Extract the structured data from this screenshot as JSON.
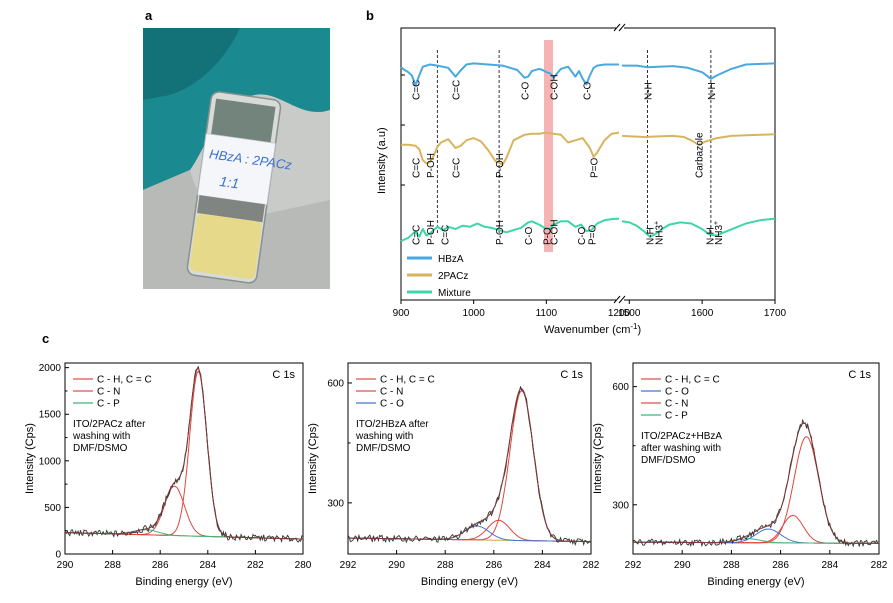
{
  "panel_labels": {
    "a": "a",
    "b": "b",
    "c": "c"
  },
  "photo": {
    "label_text": "HBzA : 2PACz",
    "label_ratio": "1:1",
    "colors": {
      "glove": "#1a8a90",
      "powder": "#e6d98a",
      "background": "#c9cbc9"
    }
  },
  "chart_data": [
    {
      "type": "line",
      "panel": "b",
      "xlabel": "Wavenumber (cm",
      "xlabel_sup": "-1",
      "xlabel_end": ")",
      "ylabel": "Intensity (a.u)",
      "broken_axis": true,
      "x_ticks": [
        "900",
        "1000",
        "1100",
        "1200",
        "1500",
        "1600",
        "1700"
      ],
      "xlim_left": [
        900,
        1200
      ],
      "xlim_right": [
        1490,
        1700
      ],
      "highlight_band_center": 1102,
      "legend": [
        {
          "label": "HBzA",
          "color": "#4aa8e0"
        },
        {
          "label": "2PACz",
          "color": "#d9b45e"
        },
        {
          "label": "Mixture",
          "color": "#3dd6a8"
        }
      ],
      "series": [
        {
          "name": "HBzA",
          "color": "#4aa8e0",
          "offset": 9,
          "left": [
            [
              900,
              0.45
            ],
            [
              905,
              0.7
            ],
            [
              910,
              0.9
            ],
            [
              915,
              1.2
            ],
            [
              920,
              2.1
            ],
            [
              925,
              1.2
            ],
            [
              930,
              0.4
            ],
            [
              940,
              0.2
            ],
            [
              950,
              0.3
            ],
            [
              965,
              0.5
            ],
            [
              975,
              1.3
            ],
            [
              980,
              0.9
            ],
            [
              990,
              0.2
            ],
            [
              1000,
              0.1
            ],
            [
              1020,
              0.2
            ],
            [
              1040,
              0.3
            ],
            [
              1060,
              0.7
            ],
            [
              1070,
              1.4
            ],
            [
              1075,
              1.3
            ],
            [
              1080,
              0.8
            ],
            [
              1090,
              0.6
            ],
            [
              1095,
              0.7
            ],
            [
              1100,
              0.9
            ],
            [
              1105,
              1.0
            ],
            [
              1110,
              1.4
            ],
            [
              1115,
              1.0
            ],
            [
              1120,
              0.6
            ],
            [
              1130,
              0.4
            ],
            [
              1140,
              1.3
            ],
            [
              1145,
              0.8
            ],
            [
              1150,
              1.5
            ],
            [
              1155,
              2.0
            ],
            [
              1160,
              1.2
            ],
            [
              1165,
              0.5
            ],
            [
              1170,
              0.3
            ],
            [
              1180,
              0.2
            ],
            [
              1190,
              0.2
            ],
            [
              1200,
              0.2
            ]
          ],
          "right": [
            [
              1490,
              0.3
            ],
            [
              1510,
              0.3
            ],
            [
              1525,
              0.45
            ],
            [
              1540,
              0.4
            ],
            [
              1560,
              0.35
            ],
            [
              1580,
              0.5
            ],
            [
              1600,
              0.9
            ],
            [
              1612,
              1.5
            ],
            [
              1620,
              1.2
            ],
            [
              1640,
              0.6
            ],
            [
              1660,
              0.2
            ],
            [
              1680,
              0.15
            ],
            [
              1700,
              0.1
            ]
          ]
        },
        {
          "name": "2PACz",
          "color": "#d9b45e",
          "offset": 5,
          "left": [
            [
              900,
              1.2
            ],
            [
              910,
              1.2
            ],
            [
              920,
              1.3
            ],
            [
              925,
              1.6
            ],
            [
              930,
              2.6
            ],
            [
              935,
              2.9
            ],
            [
              940,
              2.8
            ],
            [
              945,
              2.2
            ],
            [
              950,
              1.4
            ],
            [
              955,
              1.0
            ],
            [
              965,
              0.7
            ],
            [
              975,
              1.5
            ],
            [
              982,
              1.3
            ],
            [
              990,
              0.8
            ],
            [
              1000,
              0.6
            ],
            [
              1010,
              0.9
            ],
            [
              1020,
              1.7
            ],
            [
              1030,
              2.7
            ],
            [
              1040,
              3.0
            ],
            [
              1045,
              2.4
            ],
            [
              1055,
              0.8
            ],
            [
              1070,
              0.3
            ],
            [
              1080,
              0.2
            ],
            [
              1090,
              0.2
            ],
            [
              1100,
              0.1
            ],
            [
              1110,
              0.2
            ],
            [
              1120,
              0.3
            ],
            [
              1130,
              1.0
            ],
            [
              1140,
              0.8
            ],
            [
              1150,
              0.6
            ],
            [
              1160,
              1.5
            ],
            [
              1165,
              2.3
            ],
            [
              1170,
              1.9
            ],
            [
              1180,
              0.8
            ],
            [
              1190,
              0.2
            ],
            [
              1200,
              0.1
            ]
          ],
          "right": [
            [
              1490,
              0.4
            ],
            [
              1520,
              0.5
            ],
            [
              1540,
              0.45
            ],
            [
              1560,
              0.4
            ],
            [
              1575,
              0.5
            ],
            [
              1585,
              0.8
            ],
            [
              1595,
              1.2
            ],
            [
              1605,
              0.9
            ],
            [
              1620,
              0.6
            ],
            [
              1640,
              0.4
            ],
            [
              1660,
              0.35
            ],
            [
              1680,
              0.3
            ],
            [
              1700,
              0.25
            ]
          ]
        },
        {
          "name": "Mixture",
          "color": "#3dd6a8",
          "offset": 0,
          "left": [
            [
              900,
              2.1
            ],
            [
              910,
              1.8
            ],
            [
              920,
              1.2
            ],
            [
              925,
              1.7
            ],
            [
              930,
              1.0
            ],
            [
              935,
              1.6
            ],
            [
              940,
              1.4
            ],
            [
              950,
              0.8
            ],
            [
              958,
              1.1
            ],
            [
              965,
              0.8
            ],
            [
              975,
              1.0
            ],
            [
              985,
              0.7
            ],
            [
              995,
              0.8
            ],
            [
              1005,
              0.5
            ],
            [
              1015,
              0.8
            ],
            [
              1025,
              0.9
            ],
            [
              1035,
              1.1
            ],
            [
              1045,
              1.3
            ],
            [
              1055,
              1.1
            ],
            [
              1065,
              0.9
            ],
            [
              1075,
              0.4
            ],
            [
              1080,
              0.3
            ],
            [
              1090,
              0.6
            ],
            [
              1100,
              1.0
            ],
            [
              1105,
              1.0
            ],
            [
              1110,
              0.6
            ],
            [
              1120,
              0.3
            ],
            [
              1130,
              0.3
            ],
            [
              1140,
              0.8
            ],
            [
              1148,
              0.6
            ],
            [
              1155,
              1.2
            ],
            [
              1162,
              1.1
            ],
            [
              1170,
              0.5
            ],
            [
              1180,
              0.2
            ],
            [
              1190,
              0.1
            ],
            [
              1200,
              0.05
            ]
          ],
          "right": [
            [
              1490,
              0.3
            ],
            [
              1500,
              0.4
            ],
            [
              1510,
              0.7
            ],
            [
              1520,
              1.2
            ],
            [
              1528,
              1.7
            ],
            [
              1535,
              1.5
            ],
            [
              1545,
              1.0
            ],
            [
              1555,
              0.6
            ],
            [
              1570,
              0.4
            ],
            [
              1585,
              0.5
            ],
            [
              1600,
              1.0
            ],
            [
              1610,
              1.5
            ],
            [
              1620,
              1.6
            ],
            [
              1630,
              1.3
            ],
            [
              1645,
              0.9
            ],
            [
              1660,
              0.5
            ],
            [
              1680,
              0.2
            ],
            [
              1700,
              0.05
            ]
          ]
        }
      ],
      "annotations": [
        {
          "series": 0,
          "text": "C=C",
          "x": 920
        },
        {
          "series": 0,
          "text": "C=C",
          "x": 975
        },
        {
          "series": 0,
          "text": "C-O",
          "x": 1070
        },
        {
          "series": 0,
          "text": "C-OH",
          "x": 1110
        },
        {
          "series": 0,
          "text": "C-O",
          "x": 1155
        },
        {
          "series": 0,
          "text": "N-H",
          "x": 1525
        },
        {
          "series": 0,
          "text": "N-H",
          "x": 1612
        },
        {
          "series": 1,
          "text": "C=C",
          "x": 920
        },
        {
          "series": 1,
          "text": "P-OH",
          "x": 940
        },
        {
          "series": 1,
          "text": "C=C",
          "x": 975
        },
        {
          "series": 1,
          "text": "P-OH",
          "x": 1035
        },
        {
          "series": 1,
          "text": "P=O",
          "x": 1165
        },
        {
          "series": 1,
          "text": "Carbazole",
          "x": 1595
        },
        {
          "series": 2,
          "text": "C=C",
          "x": 920
        },
        {
          "series": 2,
          "text": "P-OH",
          "x": 940
        },
        {
          "series": 2,
          "text": "C=C",
          "x": 960
        },
        {
          "series": 2,
          "text": "P-OH",
          "x": 1035
        },
        {
          "series": 2,
          "text": "C-O",
          "x": 1075
        },
        {
          "series": 2,
          "text": "P-O",
          "x": 1100
        },
        {
          "series": 2,
          "text": "C-OH",
          "x": 1110
        },
        {
          "series": 2,
          "text": "C-O",
          "x": 1148
        },
        {
          "series": 2,
          "text": "P=O",
          "x": 1162
        },
        {
          "series": 2,
          "text": "N-H",
          "x": 1528
        },
        {
          "series": 2,
          "text": "NH3",
          "x": 1540
        },
        {
          "series": 2,
          "text": "N-H",
          "x": 1610
        },
        {
          "series": 2,
          "text": "NH3",
          "x": 1622
        }
      ],
      "annotation_sup": "+",
      "dashed_lines_x": [
        950,
        1035,
        1525,
        1612
      ]
    },
    {
      "type": "line",
      "panel": "c1",
      "title": "C 1s",
      "xlabel": "Binding energy (eV)",
      "ylabel": "Intensity (Cps)",
      "x_reversed": true,
      "xlim": [
        290,
        280
      ],
      "ylim": [
        0,
        2050
      ],
      "x_ticks": [
        290,
        288,
        286,
        284,
        282,
        280
      ],
      "y_ticks": [
        0,
        500,
        1000,
        1500,
        2000
      ],
      "y_ticks_minor": [
        250,
        750,
        1250,
        1750
      ],
      "note": [
        "ITO/2PACz after",
        "washing with",
        "DMF/DSMO"
      ],
      "background": {
        "left": 230,
        "right": 160
      },
      "peaks": [
        {
          "name": "C - H, C = C",
          "color": "#e0463c",
          "center": 284.4,
          "height": 1770,
          "width": 0.36
        },
        {
          "name": "C - N",
          "color": "#e0463c",
          "center": 285.4,
          "height": 530,
          "width": 0.42
        },
        {
          "name": "C - P",
          "color": "#3fb37c",
          "center": 286.6,
          "height": 55,
          "width": 0.5
        }
      ],
      "legend": [
        {
          "label": "C - H, C = C",
          "color": "#d9534f"
        },
        {
          "label": "C - N",
          "color": "#d9534f"
        },
        {
          "label": "C - P",
          "color": "#3fb37c"
        }
      ]
    },
    {
      "type": "line",
      "panel": "c2",
      "title": "C 1s",
      "xlabel": "Binding energy (eV)",
      "ylabel": "Intensity (Cps)",
      "x_reversed": true,
      "xlim": [
        292,
        282
      ],
      "ylim": [
        172,
        650
      ],
      "x_ticks": [
        292,
        290,
        288,
        286,
        284,
        282
      ],
      "y_ticks": [
        300,
        600
      ],
      "y_ticks_minor": [
        450
      ],
      "note": [
        "ITO/2HBzA after",
        "washing with",
        "DMF/DSMO"
      ],
      "background": {
        "left": 212,
        "right": 203
      },
      "peaks": [
        {
          "name": "C - H, C = C",
          "color": "#e0463c",
          "center": 284.85,
          "height": 375,
          "width": 0.48
        },
        {
          "name": "C - N",
          "color": "#e0463c",
          "center": 285.8,
          "height": 50,
          "width": 0.45
        },
        {
          "name": "C - O",
          "color": "#4478d0",
          "center": 286.7,
          "height": 35,
          "width": 0.5
        }
      ],
      "legend": [
        {
          "label": "C - H, C = C",
          "color": "#d9534f"
        },
        {
          "label": "C - N",
          "color": "#d9534f"
        },
        {
          "label": "C - O",
          "color": "#4478d0"
        }
      ]
    },
    {
      "type": "line",
      "panel": "c3",
      "title": "C 1s",
      "xlabel": "Binding energy (eV)",
      "ylabel": "Intensity (Cps)",
      "x_reversed": true,
      "xlim": [
        292,
        282
      ],
      "ylim": [
        175,
        660
      ],
      "x_ticks": [
        292,
        290,
        288,
        286,
        284,
        282
      ],
      "y_ticks": [
        300,
        600
      ],
      "y_ticks_minor": [
        450
      ],
      "note": [
        "ITO/2PACz+HBzA",
        "after washing with",
        "DMF/DSMO"
      ],
      "background": {
        "left": 205,
        "right": 202
      },
      "peaks": [
        {
          "name": "C - H, C = C",
          "color": "#e0463c",
          "center": 284.95,
          "height": 270,
          "width": 0.5
        },
        {
          "name": "C - N",
          "color": "#e0463c",
          "center": 285.5,
          "height": 70,
          "width": 0.42
        },
        {
          "name": "C - O",
          "color": "#4478d0",
          "center": 286.5,
          "height": 35,
          "width": 0.5
        },
        {
          "name": "C - P",
          "color": "#3fb37c",
          "center": 287.3,
          "height": 10,
          "width": 0.5
        }
      ],
      "legend": [
        {
          "label": "C - H, C = C",
          "color": "#d9534f"
        },
        {
          "label": "C - O",
          "color": "#4478d0"
        },
        {
          "label": "C - N",
          "color": "#d9534f"
        },
        {
          "label": "C - P",
          "color": "#3fb37c"
        }
      ]
    }
  ]
}
